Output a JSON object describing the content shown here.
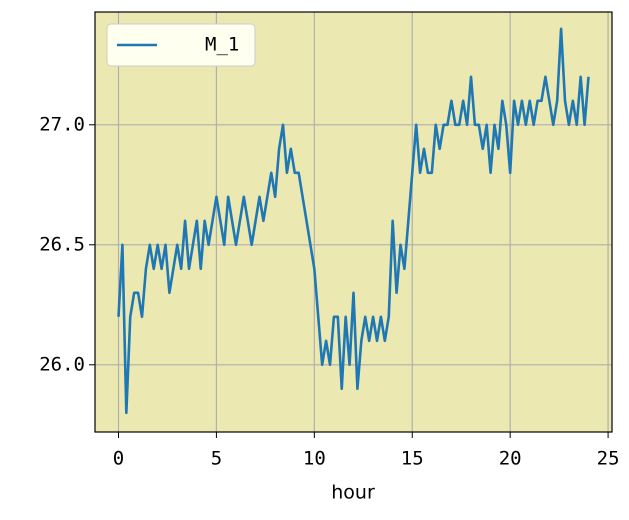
{
  "chart_data": {
    "type": "line",
    "xlabel": "hour",
    "x": [
      0.0,
      0.2,
      0.4,
      0.6,
      0.8,
      1.0,
      1.2,
      1.4,
      1.6,
      1.8,
      2.0,
      2.2,
      2.4,
      2.6,
      2.8,
      3.0,
      3.2,
      3.4,
      3.6,
      3.8,
      4.0,
      4.2,
      4.4,
      4.6,
      4.8,
      5.0,
      5.2,
      5.4,
      5.6,
      5.8,
      6.0,
      6.2,
      6.4,
      6.6,
      6.8,
      7.0,
      7.2,
      7.4,
      7.6,
      7.8,
      8.0,
      8.2,
      8.4,
      8.6,
      8.8,
      9.0,
      9.2,
      9.4,
      9.6,
      9.8,
      10.0,
      10.2,
      10.4,
      10.6,
      10.8,
      11.0,
      11.2,
      11.4,
      11.6,
      11.8,
      12.0,
      12.2,
      12.4,
      12.6,
      12.8,
      13.0,
      13.2,
      13.4,
      13.6,
      13.8,
      14.0,
      14.2,
      14.4,
      14.6,
      14.8,
      15.0,
      15.2,
      15.4,
      15.6,
      15.8,
      16.0,
      16.2,
      16.4,
      16.6,
      16.8,
      17.0,
      17.2,
      17.4,
      17.6,
      17.8,
      18.0,
      18.2,
      18.4,
      18.6,
      18.8,
      19.0,
      19.2,
      19.4,
      19.6,
      19.8,
      20.0,
      20.2,
      20.4,
      20.6,
      20.8,
      21.0,
      21.2,
      21.4,
      21.6,
      21.8,
      22.0,
      22.2,
      22.4,
      22.6,
      22.8,
      23.0,
      23.2,
      23.4,
      23.6,
      23.8,
      24.0
    ],
    "series": [
      {
        "name": "M_1",
        "color": "#1f77b4",
        "values": [
          26.2,
          26.5,
          25.8,
          26.2,
          26.3,
          26.3,
          26.2,
          26.4,
          26.5,
          26.4,
          26.5,
          26.4,
          26.5,
          26.3,
          26.4,
          26.5,
          26.4,
          26.6,
          26.4,
          26.5,
          26.6,
          26.4,
          26.6,
          26.5,
          26.6,
          26.7,
          26.6,
          26.5,
          26.7,
          26.6,
          26.5,
          26.6,
          26.7,
          26.6,
          26.5,
          26.6,
          26.7,
          26.6,
          26.7,
          26.8,
          26.7,
          26.9,
          27.0,
          26.8,
          26.9,
          26.8,
          26.8,
          26.7,
          26.6,
          26.5,
          26.4,
          26.2,
          26.0,
          26.1,
          26.0,
          26.2,
          26.2,
          25.9,
          26.2,
          26.0,
          26.3,
          25.9,
          26.1,
          26.2,
          26.1,
          26.2,
          26.1,
          26.2,
          26.1,
          26.2,
          26.6,
          26.3,
          26.5,
          26.4,
          26.6,
          26.8,
          27.0,
          26.8,
          26.9,
          26.8,
          26.8,
          27.0,
          26.9,
          27.0,
          27.0,
          27.1,
          27.0,
          27.0,
          27.1,
          27.0,
          27.2,
          27.0,
          27.0,
          26.9,
          27.0,
          26.8,
          27.0,
          26.9,
          27.1,
          27.0,
          26.8,
          27.1,
          27.0,
          27.1,
          27.0,
          27.1,
          27.0,
          27.1,
          27.1,
          27.2,
          27.1,
          27.0,
          27.1,
          27.4,
          27.1,
          27.0,
          27.1,
          27.0,
          27.2,
          27.0,
          27.2
        ]
      }
    ],
    "xlim": [
      -1.2,
      25.2
    ],
    "xticks": [
      0,
      5,
      10,
      15,
      20,
      25
    ],
    "ylim": [
      25.72,
      27.47
    ],
    "yticks": [
      {
        "value": 26.0,
        "label": "26.0"
      },
      {
        "value": 26.5,
        "label": "26.5"
      },
      {
        "value": 27.0,
        "label": "27.0"
      }
    ],
    "grid": true,
    "legend": "upper left",
    "background": "#ebe9b1"
  }
}
